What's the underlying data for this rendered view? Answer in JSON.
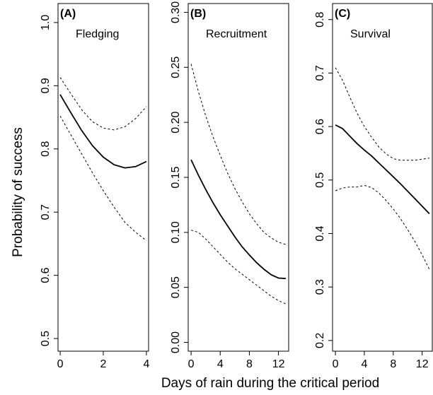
{
  "figure": {
    "ylabel": "Probability of success",
    "xlabel": "Days of rain during the critical period"
  },
  "chart_data": [
    {
      "type": "line",
      "panel_tag": "(A)",
      "title": "Fledging",
      "xlim": [
        -0.1,
        4.1
      ],
      "ylim": [
        0.48,
        1.03
      ],
      "xticks": [
        0,
        2,
        4
      ],
      "xtick_labels": [
        "0",
        "2",
        "4"
      ],
      "yticks": [
        0.5,
        0.6,
        0.7,
        0.8,
        0.9,
        1.0
      ],
      "ytick_labels": [
        "0.5",
        "0.6",
        "0.7",
        "0.8",
        "0.9",
        "1.0"
      ],
      "grid": false,
      "series": [
        {
          "role": "estimate",
          "style": "solid",
          "x": [
            0,
            0.5,
            1,
            1.5,
            2,
            2.5,
            3,
            3.5,
            4
          ],
          "y": [
            0.886,
            0.857,
            0.829,
            0.805,
            0.787,
            0.775,
            0.77,
            0.772,
            0.78
          ]
        },
        {
          "role": "upper-ci",
          "style": "dashed",
          "x": [
            0,
            0.5,
            1,
            1.5,
            2,
            2.5,
            3,
            3.5,
            4
          ],
          "y": [
            0.913,
            0.887,
            0.862,
            0.843,
            0.833,
            0.83,
            0.835,
            0.848,
            0.867
          ]
        },
        {
          "role": "lower-ci",
          "style": "dashed",
          "x": [
            0,
            0.5,
            1,
            1.5,
            2,
            2.5,
            3,
            3.5,
            4
          ],
          "y": [
            0.852,
            0.822,
            0.792,
            0.762,
            0.734,
            0.708,
            0.684,
            0.668,
            0.655
          ]
        }
      ]
    },
    {
      "type": "line",
      "panel_tag": "(B)",
      "title": "Recruitment",
      "xlim": [
        -0.4,
        13.4
      ],
      "ylim": [
        -0.008,
        0.308
      ],
      "xticks": [
        0,
        4,
        8,
        12
      ],
      "xtick_labels": [
        "0",
        "4",
        "8",
        "12"
      ],
      "yticks": [
        0.0,
        0.05,
        0.1,
        0.15,
        0.2,
        0.25,
        0.3
      ],
      "ytick_labels": [
        "0.00",
        "0.05",
        "0.10",
        "0.15",
        "0.20",
        "0.25",
        "0.30"
      ],
      "grid": false,
      "series": [
        {
          "role": "estimate",
          "style": "solid",
          "x": [
            0,
            1,
            2,
            3,
            4,
            5,
            6,
            7,
            8,
            9,
            10,
            11,
            12,
            13
          ],
          "y": [
            0.166,
            0.152,
            0.139,
            0.127,
            0.116,
            0.106,
            0.096,
            0.087,
            0.0795,
            0.0725,
            0.0665,
            0.0615,
            0.0585,
            0.058
          ]
        },
        {
          "role": "upper-ci",
          "style": "dashed",
          "x": [
            0,
            1,
            2,
            3,
            4,
            5,
            6,
            7,
            8,
            9,
            10,
            11,
            12,
            13
          ],
          "y": [
            0.253,
            0.228,
            0.206,
            0.187,
            0.17,
            0.154,
            0.14,
            0.128,
            0.117,
            0.108,
            0.1,
            0.095,
            0.091,
            0.089
          ]
        },
        {
          "role": "lower-ci",
          "style": "dashed",
          "x": [
            0,
            1,
            2,
            3,
            4,
            5,
            6,
            7,
            8,
            9,
            10,
            11,
            12,
            13
          ],
          "y": [
            0.102,
            0.1,
            0.094,
            0.087,
            0.08,
            0.073,
            0.067,
            0.062,
            0.057,
            0.052,
            0.047,
            0.042,
            0.038,
            0.035
          ]
        }
      ]
    },
    {
      "type": "line",
      "panel_tag": "(C)",
      "title": "Survival",
      "xlim": [
        -0.4,
        13.4
      ],
      "ylim": [
        0.18,
        0.83
      ],
      "xticks": [
        0,
        4,
        8,
        12
      ],
      "xtick_labels": [
        "0",
        "4",
        "8",
        "12"
      ],
      "yticks": [
        0.2,
        0.3,
        0.4,
        0.5,
        0.6,
        0.7,
        0.8
      ],
      "ytick_labels": [
        "0.2",
        "0.3",
        "0.4",
        "0.5",
        "0.6",
        "0.7",
        "0.8"
      ],
      "grid": false,
      "series": [
        {
          "role": "estimate",
          "style": "solid",
          "x": [
            0,
            1,
            2,
            3,
            4,
            5,
            6,
            7,
            8,
            9,
            10,
            11,
            12,
            13
          ],
          "y": [
            0.603,
            0.596,
            0.582,
            0.568,
            0.556,
            0.545,
            0.532,
            0.519,
            0.506,
            0.493,
            0.479,
            0.465,
            0.451,
            0.437
          ]
        },
        {
          "role": "upper-ci",
          "style": "dashed",
          "x": [
            0,
            1,
            2,
            3,
            4,
            5,
            6,
            7,
            8,
            9,
            10,
            11,
            12,
            13
          ],
          "y": [
            0.71,
            0.686,
            0.655,
            0.625,
            0.6,
            0.58,
            0.562,
            0.549,
            0.54,
            0.537,
            0.537,
            0.537,
            0.539,
            0.541
          ]
        },
        {
          "role": "lower-ci",
          "style": "dashed",
          "x": [
            0,
            1,
            2,
            3,
            4,
            5,
            6,
            7,
            8,
            9,
            10,
            11,
            12,
            13
          ],
          "y": [
            0.48,
            0.485,
            0.487,
            0.487,
            0.49,
            0.486,
            0.476,
            0.462,
            0.446,
            0.428,
            0.407,
            0.385,
            0.36,
            0.333
          ]
        }
      ]
    }
  ]
}
